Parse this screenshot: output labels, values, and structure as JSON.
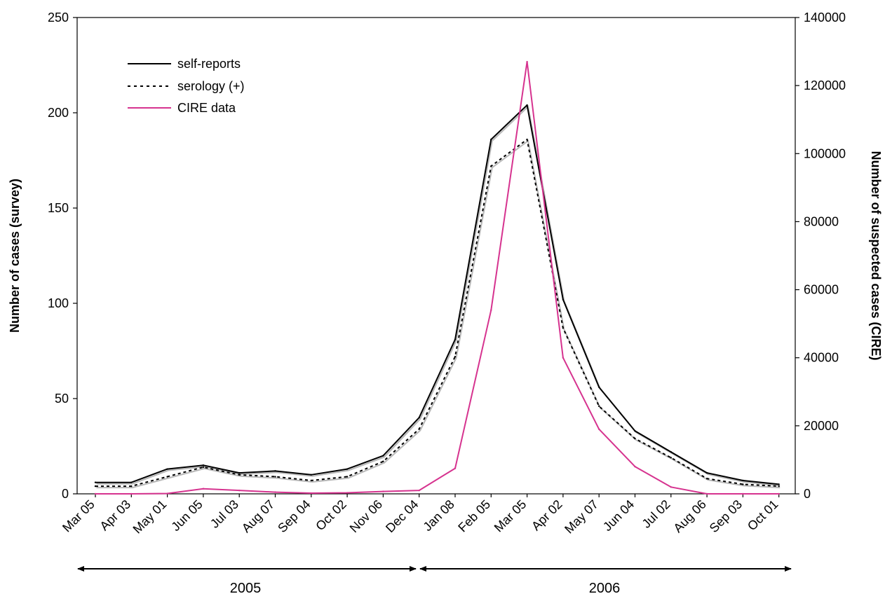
{
  "chart_data": {
    "type": "line",
    "title": "",
    "xlabel": "",
    "ylabel": "Number of cases (survey)",
    "y2label": "Number of suspected cases (CIRE)",
    "ylim": [
      0,
      250
    ],
    "y2lim": [
      0,
      140000
    ],
    "yticks": [
      0,
      50,
      100,
      150,
      200,
      250
    ],
    "y2ticks": [
      0,
      20000,
      40000,
      60000,
      80000,
      100000,
      120000,
      140000
    ],
    "categories": [
      "Mar 05",
      "Apr 03",
      "May 01",
      "Jun 05",
      "Jul 03",
      "Aug 07",
      "Sep 04",
      "Oct 02",
      "Nov 06",
      "Dec 04",
      "Jan 08",
      "Feb 05",
      "Mar 05",
      "Apr 02",
      "May 07",
      "Jun 04",
      "Jul 02",
      "Aug 06",
      "Sep 03",
      "Oct 01"
    ],
    "series": [
      {
        "name": "self-reports",
        "axis": "left",
        "style": "solid",
        "color": "#000000",
        "values": [
          6,
          6,
          13,
          15,
          11,
          12,
          10,
          13,
          20,
          40,
          81,
          186,
          204,
          102,
          56,
          33,
          22,
          11,
          7,
          5
        ]
      },
      {
        "name": "serology (+)",
        "axis": "left",
        "style": "dotted",
        "color": "#000000",
        "values": [
          4,
          4,
          9,
          14,
          10,
          9,
          7,
          9,
          17,
          34,
          72,
          172,
          186,
          87,
          46,
          29,
          19,
          8,
          5,
          4
        ]
      },
      {
        "name": "CIRE data",
        "axis": "right",
        "style": "solid",
        "color": "#d6338f",
        "values": [
          0,
          0,
          100,
          1500,
          1000,
          500,
          200,
          300,
          700,
          1000,
          7500,
          54000,
          127000,
          40000,
          19000,
          8000,
          2000,
          0,
          0,
          0
        ]
      }
    ],
    "legend": {
      "position": "top-left",
      "entries": [
        "self-reports",
        "serology (+)",
        "CIRE data"
      ]
    },
    "periods": [
      {
        "label": "2005",
        "from": "Mar 05",
        "to": "Dec 04"
      },
      {
        "label": "2006",
        "from": "Dec 04",
        "to": "Oct 01"
      }
    ],
    "grid": false
  }
}
